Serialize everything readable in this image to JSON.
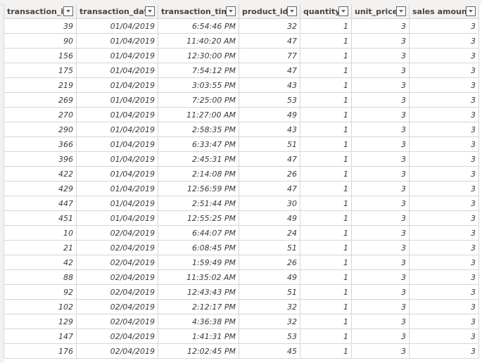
{
  "columns": [
    "transaction_id",
    "transaction_date",
    "transaction_time",
    "product_id",
    "quantity",
    "unit_price",
    "sales amount"
  ],
  "rows": [
    [
      "39",
      "01/04/2019",
      "6:54:46 PM",
      "32",
      "1",
      "3",
      "3"
    ],
    [
      "90",
      "01/04/2019",
      "11:40:20 AM",
      "47",
      "1",
      "3",
      "3"
    ],
    [
      "156",
      "01/04/2019",
      "12:30:00 PM",
      "77",
      "1",
      "3",
      "3"
    ],
    [
      "175",
      "01/04/2019",
      "7:54:12 PM",
      "47",
      "1",
      "3",
      "3"
    ],
    [
      "219",
      "01/04/2019",
      "3:03:55 PM",
      "43",
      "1",
      "3",
      "3"
    ],
    [
      "269",
      "01/04/2019",
      "7:25:00 PM",
      "53",
      "1",
      "3",
      "3"
    ],
    [
      "270",
      "01/04/2019",
      "11:27:00 AM",
      "49",
      "1",
      "3",
      "3"
    ],
    [
      "290",
      "01/04/2019",
      "2:58:35 PM",
      "43",
      "1",
      "3",
      "3"
    ],
    [
      "366",
      "01/04/2019",
      "6:33:47 PM",
      "51",
      "1",
      "3",
      "3"
    ],
    [
      "396",
      "01/04/2019",
      "2:45:31 PM",
      "47",
      "1",
      "3",
      "3"
    ],
    [
      "422",
      "01/04/2019",
      "2:14:08 PM",
      "26",
      "1",
      "3",
      "3"
    ],
    [
      "429",
      "01/04/2019",
      "12:56:59 PM",
      "47",
      "1",
      "3",
      "3"
    ],
    [
      "447",
      "01/04/2019",
      "2:51:44 PM",
      "30",
      "1",
      "3",
      "3"
    ],
    [
      "451",
      "01/04/2019",
      "12:55:25 PM",
      "49",
      "1",
      "3",
      "3"
    ],
    [
      "10",
      "02/04/2019",
      "6:44:07 PM",
      "24",
      "1",
      "3",
      "3"
    ],
    [
      "21",
      "02/04/2019",
      "6:08:45 PM",
      "51",
      "1",
      "3",
      "3"
    ],
    [
      "42",
      "02/04/2019",
      "1:59:49 PM",
      "26",
      "1",
      "3",
      "3"
    ],
    [
      "88",
      "02/04/2019",
      "11:35:02 AM",
      "49",
      "1",
      "3",
      "3"
    ],
    [
      "92",
      "02/04/2019",
      "12:43:43 PM",
      "51",
      "1",
      "3",
      "3"
    ],
    [
      "102",
      "02/04/2019",
      "2:12:17 PM",
      "32",
      "1",
      "3",
      "3"
    ],
    [
      "129",
      "02/04/2019",
      "4:36:38 PM",
      "32",
      "1",
      "3",
      "3"
    ],
    [
      "147",
      "02/04/2019",
      "1:41:31 PM",
      "53",
      "1",
      "3",
      "3"
    ],
    [
      "176",
      "02/04/2019",
      "12:02:45 PM",
      "45",
      "1",
      "3",
      "3"
    ]
  ]
}
